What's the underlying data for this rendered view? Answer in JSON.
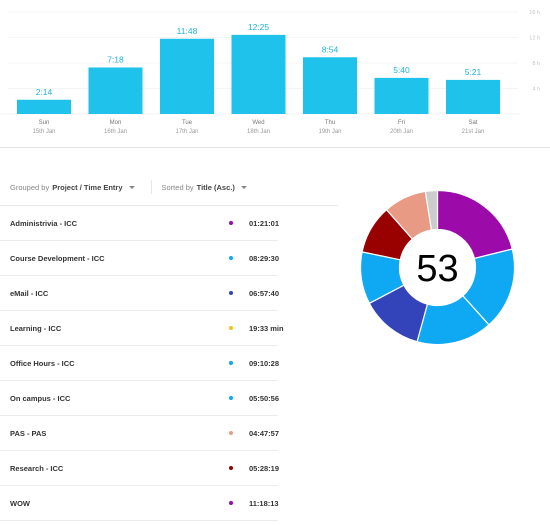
{
  "chart_data": {
    "type": "bar",
    "categories": [
      "Sun",
      "Mon",
      "Tue",
      "Wed",
      "Thu",
      "Fri",
      "Sat"
    ],
    "dates": [
      "15th Jan",
      "16th Jan",
      "17th Jan",
      "18th Jan",
      "19th Jan",
      "20th Jan",
      "21st Jan"
    ],
    "values": [
      2.233,
      7.3,
      11.8,
      12.417,
      8.9,
      5.667,
      5.35
    ],
    "value_labels": [
      "2:14",
      "7:18",
      "11:48",
      "12:25",
      "8:54",
      "5:40",
      "5:21"
    ],
    "ylim": [
      0,
      16
    ],
    "y_ticks": [
      4,
      8,
      12,
      16
    ],
    "y_tick_labels": [
      "4 h",
      "8 h",
      "12 h",
      "16 h"
    ],
    "grid": true,
    "bar_color": "#1fc2ea"
  },
  "controls": {
    "grouped_prefix": "Grouped by",
    "grouped_value": "Project / Time Entry",
    "sorted_prefix": "Sorted by",
    "sorted_value": "Title (Asc.)"
  },
  "entries": [
    {
      "title": "Administrivia - ICC",
      "duration": "01:21:01",
      "color": "#9c0aaa"
    },
    {
      "title": "Course Development - ICC",
      "duration": "08:29:30",
      "color": "#0fa8f2"
    },
    {
      "title": "eMail - ICC",
      "duration": "06:57:40",
      "color": "#3344bb"
    },
    {
      "title": "Learning - ICC",
      "duration": "19:33 min",
      "color": "#f1c21b"
    },
    {
      "title": "Office Hours - ICC",
      "duration": "09:10:28",
      "color": "#0fa8f2"
    },
    {
      "title": "On campus - ICC",
      "duration": "05:50:56",
      "color": "#0fa8f2"
    },
    {
      "title": "PAS - PAS",
      "duration": "04:47:57",
      "color": "#e89a85"
    },
    {
      "title": "Research - ICC",
      "duration": "05:28:19",
      "color": "#990000"
    },
    {
      "title": "WOW",
      "duration": "11:18:13",
      "color": "#9c0aaa"
    }
  ],
  "donut": {
    "count": "53",
    "segments": [
      {
        "value": 11.3,
        "color": "#9c0aaa"
      },
      {
        "value": 9.2,
        "color": "#0fa8f2"
      },
      {
        "value": 8.5,
        "color": "#0fa8f2"
      },
      {
        "value": 6.96,
        "color": "#3344bb"
      },
      {
        "value": 5.85,
        "color": "#0fa8f2"
      },
      {
        "value": 5.47,
        "color": "#990000"
      },
      {
        "value": 4.8,
        "color": "#e89a85"
      },
      {
        "value": 1.35,
        "color": "#cccccc"
      }
    ]
  }
}
